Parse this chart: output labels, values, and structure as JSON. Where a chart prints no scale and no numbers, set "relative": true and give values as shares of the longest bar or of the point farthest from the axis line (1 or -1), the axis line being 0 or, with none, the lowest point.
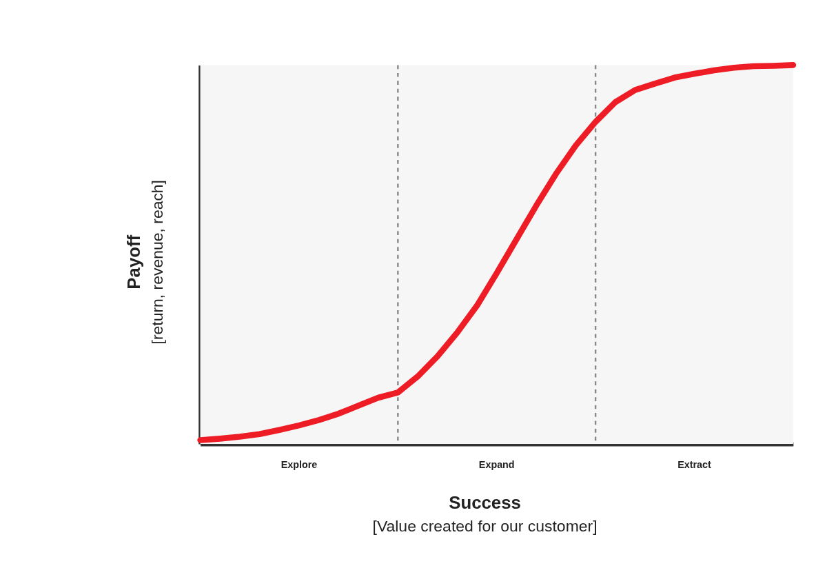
{
  "chart_data": {
    "type": "line",
    "relative": true,
    "tick_labels": false,
    "grid": false,
    "marker": "none",
    "line_style": "solid",
    "xlabel": "Success\n[Value created for our customer]",
    "ylabel": "Payoff\n[return, revenue, reach]",
    "categories": [
      null,
      null,
      null,
      null,
      null,
      null,
      null,
      null,
      null,
      null,
      null,
      null,
      null,
      null,
      null,
      null,
      null,
      null,
      null,
      null,
      null,
      null,
      null,
      null,
      null,
      null,
      null,
      null,
      null,
      null,
      null
    ],
    "series": [
      {
        "color": "#ee1c25",
        "values": [
          0.01,
          0.014,
          0.019,
          0.026,
          0.037,
          0.049,
          0.063,
          0.08,
          0.101,
          0.122,
          0.136,
          0.178,
          0.231,
          0.294,
          0.365,
          0.451,
          0.54,
          0.629,
          0.713,
          0.788,
          0.85,
          0.902,
          0.934,
          0.951,
          0.967,
          0.977,
          0.986,
          0.993,
          0.997,
          0.998,
          1.0
        ]
      }
    ],
    "annotations": [
      "Explore",
      "Expand",
      "Extract"
    ]
  }
}
